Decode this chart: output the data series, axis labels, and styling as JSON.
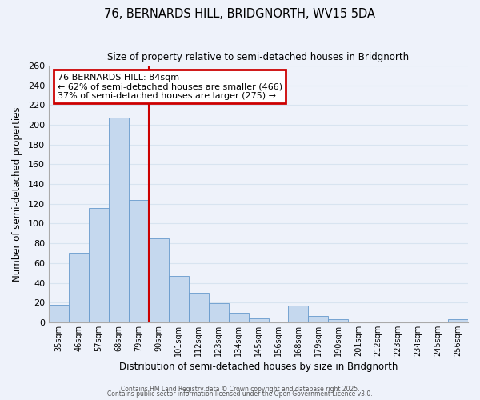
{
  "title": "76, BERNARDS HILL, BRIDGNORTH, WV15 5DA",
  "subtitle": "Size of property relative to semi-detached houses in Bridgnorth",
  "xlabel": "Distribution of semi-detached houses by size in Bridgnorth",
  "ylabel": "Number of semi-detached properties",
  "bin_labels": [
    "35sqm",
    "46sqm",
    "57sqm",
    "68sqm",
    "79sqm",
    "90sqm",
    "101sqm",
    "112sqm",
    "123sqm",
    "134sqm",
    "145sqm",
    "156sqm",
    "168sqm",
    "179sqm",
    "190sqm",
    "201sqm",
    "212sqm",
    "223sqm",
    "234sqm",
    "245sqm",
    "256sqm"
  ],
  "bar_heights": [
    18,
    70,
    116,
    207,
    124,
    85,
    47,
    30,
    19,
    10,
    4,
    0,
    17,
    6,
    3,
    0,
    0,
    0,
    0,
    0,
    3
  ],
  "bar_color": "#c5d8ee",
  "bar_edge_color": "#6699cc",
  "ylim": [
    0,
    260
  ],
  "yticks": [
    0,
    20,
    40,
    60,
    80,
    100,
    120,
    140,
    160,
    180,
    200,
    220,
    240,
    260
  ],
  "property_line_bin_index": 4.5,
  "annotation_title": "76 BERNARDS HILL: 84sqm",
  "annotation_line1": "← 62% of semi-detached houses are smaller (466)",
  "annotation_line2": "37% of semi-detached houses are larger (275) →",
  "annotation_box_color": "#ffffff",
  "annotation_box_edge_color": "#cc0000",
  "vline_color": "#cc0000",
  "grid_color": "#d8e4f0",
  "footer1": "Contains HM Land Registry data © Crown copyright and database right 2025.",
  "footer2": "Contains public sector information licensed under the Open Government Licence v3.0.",
  "bg_color": "#eef2fa"
}
